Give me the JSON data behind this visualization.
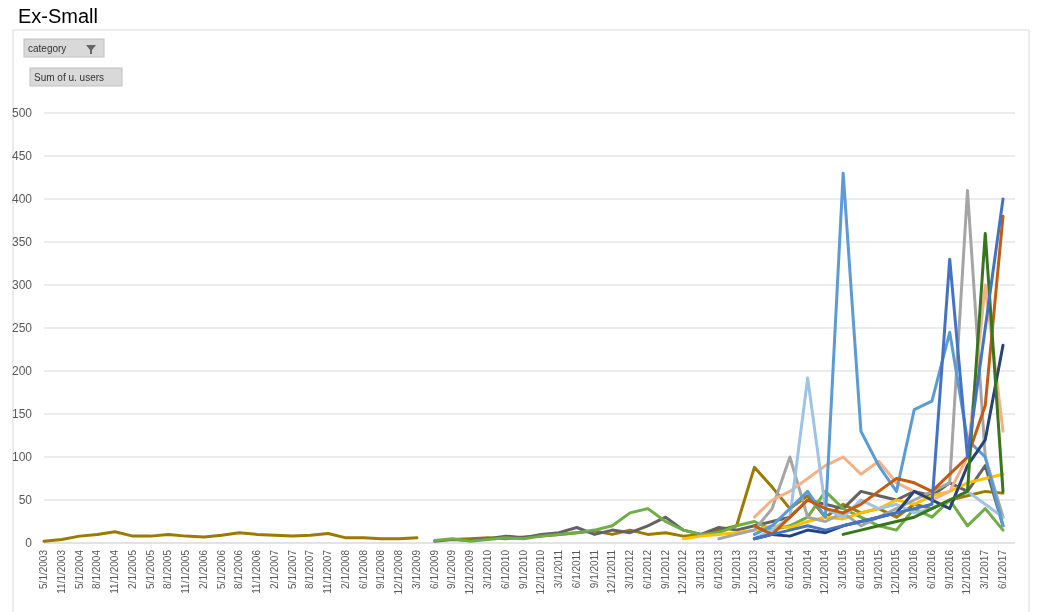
{
  "chart_data": {
    "type": "line",
    "title": "Ex-Small",
    "annotations": [
      "category",
      "Sum of u. users"
    ],
    "categories": [
      "5/1/2003",
      "11/1/2003",
      "5/1/2004",
      "8/1/2004",
      "11/1/2004",
      "2/1/2005",
      "5/1/2005",
      "8/1/2005",
      "11/1/2005",
      "2/1/2006",
      "5/1/2006",
      "8/1/2006",
      "11/1/2006",
      "2/1/2007",
      "5/1/2007",
      "8/1/2007",
      "11/1/2007",
      "2/1/2008",
      "6/1/2008",
      "9/1/2008",
      "12/1/2008",
      "3/1/2009",
      "6/1/2009",
      "9/1/2009",
      "12/1/2009",
      "3/1/2010",
      "6/1/2010",
      "9/1/2010",
      "12/1/2010",
      "3/1/2011",
      "6/1/2011",
      "9/1/2011",
      "12/1/2011",
      "3/1/2012",
      "6/1/2012",
      "9/1/2012",
      "12/1/2012",
      "3/1/2013",
      "6/1/2013",
      "9/1/2013",
      "12/1/2013",
      "3/1/2014",
      "6/1/2014",
      "9/1/2014",
      "12/1/2014",
      "3/1/2015",
      "6/1/2015",
      "9/1/2015",
      "12/1/2015",
      "3/1/2016",
      "6/1/2016",
      "9/1/2016",
      "12/1/2016",
      "3/1/2017",
      "6/1/2017"
    ],
    "ylim": [
      0,
      500
    ],
    "yticks": [
      0,
      50,
      100,
      150,
      200,
      250,
      300,
      350,
      400,
      450,
      500
    ],
    "grid": "y",
    "series": [
      {
        "color": "#9c7a00",
        "values": [
          2,
          4,
          8,
          10,
          13,
          8,
          8,
          10,
          8,
          7,
          9,
          12,
          10,
          9,
          8,
          9,
          11,
          6,
          6,
          5,
          5,
          6,
          null,
          4,
          5,
          6,
          5,
          7,
          8,
          10,
          12,
          14,
          10,
          15,
          10,
          12,
          8,
          10,
          15,
          20,
          88,
          65,
          40,
          55,
          30,
          45,
          35,
          40,
          30,
          45,
          40,
          50,
          55,
          60,
          58
        ]
      },
      {
        "color": "#636363",
        "values": [
          null,
          null,
          null,
          null,
          null,
          null,
          null,
          null,
          null,
          null,
          null,
          null,
          null,
          null,
          null,
          null,
          null,
          null,
          null,
          null,
          null,
          null,
          2,
          4,
          3,
          5,
          8,
          6,
          10,
          12,
          18,
          10,
          15,
          12,
          20,
          30,
          15,
          10,
          18,
          15,
          20,
          25,
          30,
          50,
          45,
          40,
          60,
          55,
          50,
          60,
          55,
          70,
          60,
          90,
          20
        ]
      },
      {
        "color": "#70ad47",
        "values": [
          null,
          null,
          null,
          null,
          null,
          null,
          null,
          null,
          null,
          null,
          null,
          null,
          null,
          null,
          null,
          null,
          null,
          null,
          null,
          null,
          null,
          null,
          3,
          5,
          2,
          4,
          6,
          5,
          8,
          10,
          12,
          15,
          20,
          35,
          40,
          25,
          15,
          10,
          12,
          20,
          25,
          15,
          20,
          30,
          60,
          40,
          30,
          20,
          15,
          40,
          30,
          50,
          20,
          40,
          15
        ]
      },
      {
        "color": "#ffc000",
        "values": [
          null,
          null,
          null,
          null,
          null,
          null,
          null,
          null,
          null,
          null,
          null,
          null,
          null,
          null,
          null,
          null,
          null,
          null,
          null,
          null,
          null,
          null,
          null,
          null,
          null,
          null,
          null,
          null,
          null,
          null,
          null,
          null,
          null,
          null,
          null,
          null,
          5,
          8,
          10,
          12,
          15,
          20,
          18,
          25,
          30,
          28,
          35,
          40,
          50,
          45,
          55,
          60,
          70,
          75,
          80
        ]
      },
      {
        "color": "#a5a5a5",
        "values": [
          null,
          null,
          null,
          null,
          null,
          null,
          null,
          null,
          null,
          null,
          null,
          null,
          null,
          null,
          null,
          null,
          null,
          null,
          null,
          null,
          null,
          null,
          null,
          null,
          null,
          null,
          null,
          null,
          null,
          null,
          null,
          null,
          null,
          null,
          null,
          null,
          null,
          null,
          5,
          10,
          15,
          40,
          100,
          30,
          25,
          35,
          20,
          30,
          40,
          50,
          60,
          70,
          410,
          100,
          30
        ]
      },
      {
        "color": "#f4b183",
        "values": [
          null,
          null,
          null,
          null,
          null,
          null,
          null,
          null,
          null,
          null,
          null,
          null,
          null,
          null,
          null,
          null,
          null,
          null,
          null,
          null,
          null,
          null,
          null,
          null,
          null,
          null,
          null,
          null,
          null,
          null,
          null,
          null,
          null,
          null,
          null,
          null,
          null,
          null,
          null,
          null,
          30,
          50,
          60,
          75,
          90,
          100,
          80,
          95,
          70,
          60,
          50,
          60,
          100,
          300,
          130
        ]
      },
      {
        "color": "#9dc3e6",
        "values": [
          null,
          null,
          null,
          null,
          null,
          null,
          null,
          null,
          null,
          null,
          null,
          null,
          null,
          null,
          null,
          null,
          null,
          null,
          null,
          null,
          null,
          null,
          null,
          null,
          null,
          null,
          null,
          null,
          null,
          null,
          null,
          null,
          null,
          null,
          null,
          null,
          null,
          null,
          null,
          null,
          5,
          15,
          30,
          192,
          40,
          30,
          50,
          40,
          45,
          35,
          40,
          50,
          60,
          45,
          30
        ]
      },
      {
        "color": "#5b9bd5",
        "values": [
          null,
          null,
          null,
          null,
          null,
          null,
          null,
          null,
          null,
          null,
          null,
          null,
          null,
          null,
          null,
          null,
          null,
          null,
          null,
          null,
          null,
          null,
          null,
          null,
          null,
          null,
          null,
          null,
          null,
          null,
          null,
          null,
          null,
          null,
          null,
          null,
          null,
          null,
          null,
          null,
          10,
          20,
          40,
          60,
          30,
          430,
          130,
          90,
          60,
          155,
          165,
          245,
          120,
          100,
          20
        ]
      },
      {
        "color": "#c55a11",
        "values": [
          null,
          null,
          null,
          null,
          null,
          null,
          null,
          null,
          null,
          null,
          null,
          null,
          null,
          null,
          null,
          null,
          null,
          null,
          null,
          null,
          null,
          null,
          null,
          null,
          null,
          null,
          null,
          null,
          null,
          null,
          null,
          null,
          null,
          null,
          null,
          null,
          null,
          null,
          null,
          null,
          20,
          10,
          30,
          50,
          40,
          35,
          45,
          60,
          75,
          70,
          60,
          80,
          100,
          160,
          380
        ]
      },
      {
        "color": "#264478",
        "values": [
          null,
          null,
          null,
          null,
          null,
          null,
          null,
          null,
          null,
          null,
          null,
          null,
          null,
          null,
          null,
          null,
          null,
          null,
          null,
          null,
          null,
          null,
          null,
          null,
          null,
          null,
          null,
          null,
          null,
          null,
          null,
          null,
          null,
          null,
          null,
          null,
          null,
          null,
          null,
          null,
          5,
          10,
          8,
          15,
          12,
          20,
          25,
          30,
          35,
          60,
          50,
          40,
          90,
          120,
          230
        ]
      },
      {
        "color": "#38761d",
        "values": [
          null,
          null,
          null,
          null,
          null,
          null,
          null,
          null,
          null,
          null,
          null,
          null,
          null,
          null,
          null,
          null,
          null,
          null,
          null,
          null,
          null,
          null,
          null,
          null,
          null,
          null,
          null,
          null,
          null,
          null,
          null,
          null,
          null,
          null,
          null,
          null,
          null,
          null,
          null,
          null,
          null,
          null,
          null,
          null,
          null,
          10,
          15,
          20,
          25,
          30,
          40,
          50,
          60,
          360,
          60
        ]
      },
      {
        "color": "#4472c4",
        "values": [
          null,
          null,
          null,
          null,
          null,
          null,
          null,
          null,
          null,
          null,
          null,
          null,
          null,
          null,
          null,
          null,
          null,
          null,
          null,
          null,
          null,
          null,
          null,
          null,
          null,
          null,
          null,
          null,
          null,
          null,
          null,
          null,
          null,
          null,
          null,
          null,
          null,
          null,
          null,
          null,
          5,
          10,
          15,
          20,
          15,
          20,
          25,
          30,
          35,
          40,
          45,
          330,
          100,
          250,
          400
        ]
      }
    ]
  }
}
